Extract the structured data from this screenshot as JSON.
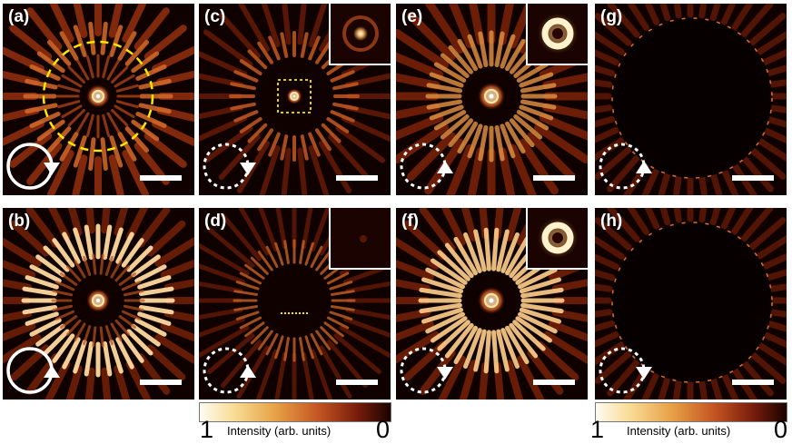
{
  "panels": [
    {
      "label": "(a)",
      "col": 0,
      "row": 0,
      "type": "a",
      "arrow": "down",
      "dashed": false,
      "inset": null
    },
    {
      "label": "(b)",
      "col": 0,
      "row": 1,
      "type": "b",
      "arrow": "up",
      "dashed": false,
      "inset": null
    },
    {
      "label": "(c)",
      "col": 1,
      "row": 0,
      "type": "c",
      "arrow": "down",
      "dashed": true,
      "inset": "spot"
    },
    {
      "label": "(d)",
      "col": 1,
      "row": 1,
      "type": "d",
      "arrow": "up",
      "dashed": true,
      "inset": "faint"
    },
    {
      "label": "(e)",
      "col": 2,
      "row": 0,
      "type": "e",
      "arrow": "up",
      "dashed": true,
      "inset": "ring"
    },
    {
      "label": "(f)",
      "col": 2,
      "row": 1,
      "type": "f",
      "arrow": "down",
      "dashed": true,
      "inset": "ring"
    },
    {
      "label": "(g)",
      "col": 3,
      "row": 0,
      "type": "g",
      "arrow": "up",
      "dashed": true,
      "inset": null
    },
    {
      "label": "(h)",
      "col": 3,
      "row": 1,
      "type": "h",
      "arrow": "down",
      "dashed": true,
      "inset": null
    }
  ],
  "colorbars": [
    {
      "max": "1",
      "min": "0",
      "caption": "Intensity (arb. units)"
    },
    {
      "max": "1",
      "min": "0",
      "caption": "Intensity (arb. units)"
    }
  ],
  "colors": {
    "hot": "#ffe9b0",
    "mid": "#d8752d",
    "dark": "#6e1c08",
    "bg": "#0f0100",
    "marker": "#ffe600"
  }
}
